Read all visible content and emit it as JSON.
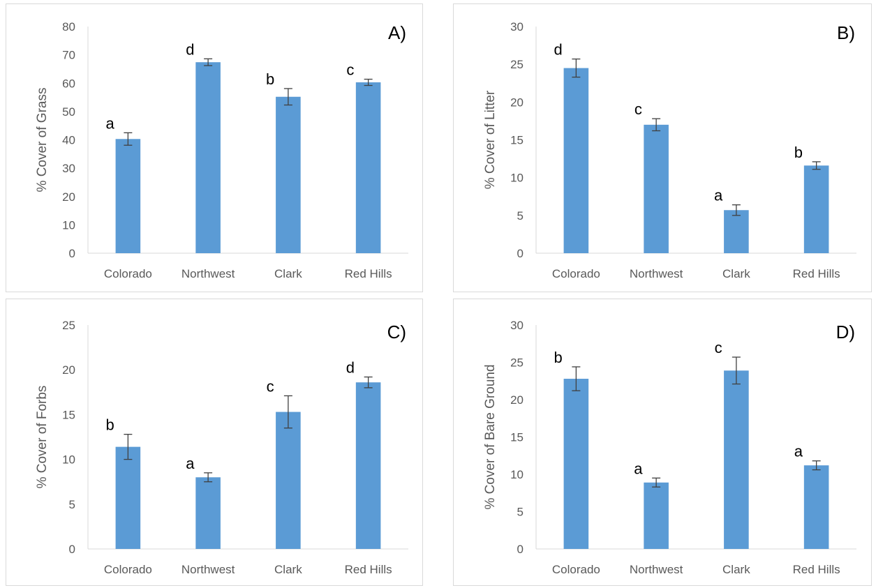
{
  "chart_data": [
    {
      "type": "bar",
      "panel_label": "A)",
      "title": "",
      "ylabel": "% Cover of Grass",
      "xlabel": "",
      "categories": [
        "Colorado",
        "Northwest",
        "Clark",
        "Red Hills"
      ],
      "values": [
        40.3,
        67.4,
        55.2,
        60.3
      ],
      "errors": [
        2.2,
        1.2,
        2.9,
        1.1
      ],
      "sig_letters": [
        "a",
        "d",
        "b",
        "c"
      ],
      "ylim": [
        0,
        80
      ],
      "yticks": [
        0,
        10,
        20,
        30,
        40,
        50,
        60,
        70,
        80
      ],
      "bar_color": "#5b9bd5"
    },
    {
      "type": "bar",
      "panel_label": "B)",
      "title": "",
      "ylabel": "% Cover of Litter",
      "xlabel": "",
      "categories": [
        "Colorado",
        "Northwest",
        "Clark",
        "Red Hills"
      ],
      "values": [
        24.5,
        17.0,
        5.7,
        11.6
      ],
      "errors": [
        1.2,
        0.8,
        0.7,
        0.5
      ],
      "sig_letters": [
        "d",
        "c",
        "a",
        "b"
      ],
      "ylim": [
        0,
        30
      ],
      "yticks": [
        0,
        5,
        10,
        15,
        20,
        25,
        30
      ],
      "bar_color": "#5b9bd5"
    },
    {
      "type": "bar",
      "panel_label": "C)",
      "title": "",
      "ylabel": "% Cover of Forbs",
      "xlabel": "",
      "categories": [
        "Colorado",
        "Northwest",
        "Clark",
        "Red Hills"
      ],
      "values": [
        11.4,
        8.0,
        15.3,
        18.6
      ],
      "errors": [
        1.4,
        0.5,
        1.8,
        0.6
      ],
      "sig_letters": [
        "b",
        "a",
        "c",
        "d"
      ],
      "ylim": [
        0,
        25
      ],
      "yticks": [
        0,
        5,
        10,
        15,
        20,
        25
      ],
      "bar_color": "#5b9bd5"
    },
    {
      "type": "bar",
      "panel_label": "D)",
      "title": "",
      "ylabel": "% Cover of Bare Ground",
      "xlabel": "",
      "categories": [
        "Colorado",
        "Northwest",
        "Clark",
        "Red Hills"
      ],
      "values": [
        22.8,
        8.9,
        23.9,
        11.2
      ],
      "errors": [
        1.6,
        0.6,
        1.8,
        0.6
      ],
      "sig_letters": [
        "b",
        "a",
        "c",
        "a"
      ],
      "ylim": [
        0,
        30
      ],
      "yticks": [
        0,
        5,
        10,
        15,
        20,
        25,
        30
      ],
      "bar_color": "#5b9bd5"
    }
  ]
}
